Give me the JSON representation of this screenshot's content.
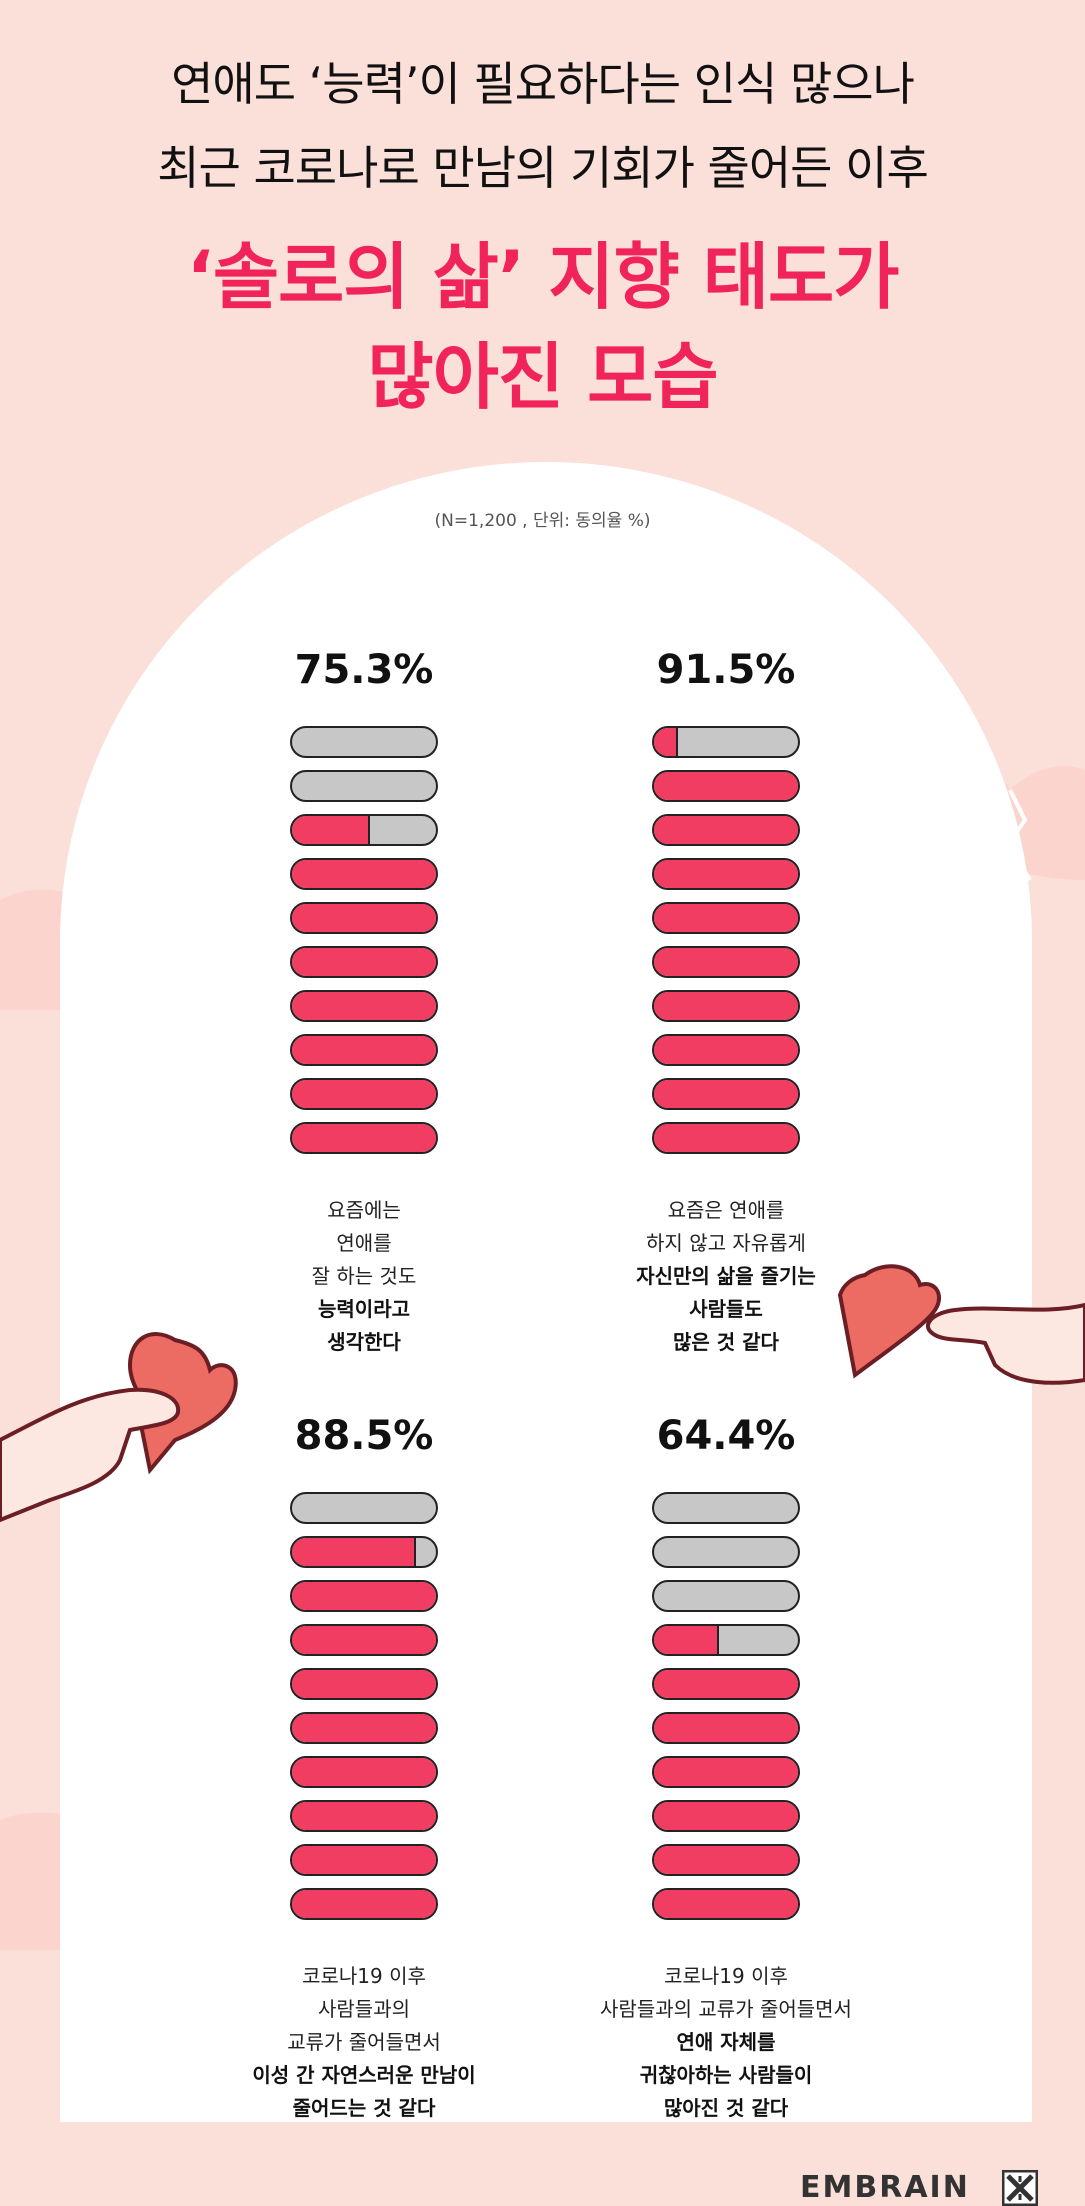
{
  "header": {
    "line1": "연애도 ‘능력’이 필요하다는 인식 많으나",
    "line2": "최근 코로나로 만남의 기회가 줄어든 이후",
    "emphasis1": "‘솔로의 삶’ 지향 태도가",
    "emphasis2": "많아진 모습"
  },
  "note": "(N=1,200 , 단위: 동의율 %)",
  "colors": {
    "agree": "#f23d62",
    "rest": "#c8c7c7",
    "accent": "#f0245a",
    "background": "#fbe0da"
  },
  "chart_data": {
    "type": "bar",
    "unit": "%",
    "items": [
      {
        "value": 75.3,
        "label": "75.3%",
        "desc": [
          {
            "text": "요즘에는",
            "bold": false
          },
          {
            "text": "연애를",
            "bold": false
          },
          {
            "text": "잘 하는 것도",
            "bold": false
          },
          {
            "text": "능력이라고",
            "bold": true
          },
          {
            "text": "생각한다",
            "bold": true
          }
        ]
      },
      {
        "value": 91.5,
        "label": "91.5%",
        "desc": [
          {
            "text": "요즘은 연애를",
            "bold": false
          },
          {
            "text": "하지 않고 자유롭게",
            "bold": false
          },
          {
            "text": "자신만의 삶을 즐기는",
            "bold": true
          },
          {
            "text": "사람들도",
            "bold": true
          },
          {
            "text": "많은 것 같다",
            "bold": true
          }
        ]
      },
      {
        "value": 88.5,
        "label": "88.5%",
        "desc": [
          {
            "text": "코로나19 이후",
            "bold": false
          },
          {
            "text": "사람들과의",
            "bold": false
          },
          {
            "text": "교류가 줄어들면서",
            "bold": false
          },
          {
            "text": "이성 간 자연스러운 만남이",
            "bold": true
          },
          {
            "text": "줄어드는 것 같다",
            "bold": true
          }
        ]
      },
      {
        "value": 64.4,
        "label": "64.4%",
        "desc": [
          {
            "text": "코로나19 이후",
            "bold": false
          },
          {
            "text": "사람들과의 교류가 줄어들면서",
            "bold": false
          },
          {
            "text": "연애 자체를",
            "bold": true
          },
          {
            "text": "귀찮아하는 사람들이",
            "bold": true
          },
          {
            "text": "많아진 것 같다",
            "bold": true
          }
        ]
      }
    ]
  },
  "brand": {
    "name": "EMBRAIN",
    "mark_icon": "embrain-x-logo-icon"
  },
  "decorations": [
    "heart-piece-icon",
    "hand-holding-heart-icon",
    "broken-heart-icon"
  ]
}
